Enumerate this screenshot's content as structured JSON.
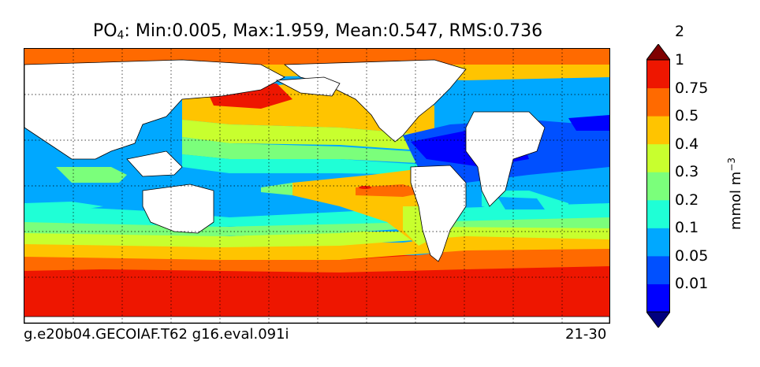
{
  "chart_data": {
    "type": "heatmap",
    "title_main": "PO",
    "title_sub": "4",
    "title_rest": ": Min:0.005, Max:1.959, Mean:0.547, RMS:0.736",
    "stats": {
      "min": 0.005,
      "max": 1.959,
      "mean": 0.547,
      "rms": 0.736
    },
    "run_label": "g.e20b04.GECOIAF.T62 g16.eval.091i",
    "depth_label": "21-30",
    "units_label": "mmol m",
    "units_exp": "−3",
    "colorbar_levels": [
      "0.01",
      "0.05",
      "0.1",
      "0.2",
      "0.3",
      "0.4",
      "0.5",
      "0.75",
      "1",
      "2"
    ],
    "colorbar_colors": [
      "#00007f",
      "#0000ff",
      "#0050ff",
      "#00a8ff",
      "#1fffd6",
      "#7bff7b",
      "#c8ff2e",
      "#ffc400",
      "#ff6a00",
      "#ee1600",
      "#7f0000"
    ],
    "colorbar_extend": "both",
    "grid": "dotted",
    "land_color": "#ffffff"
  }
}
